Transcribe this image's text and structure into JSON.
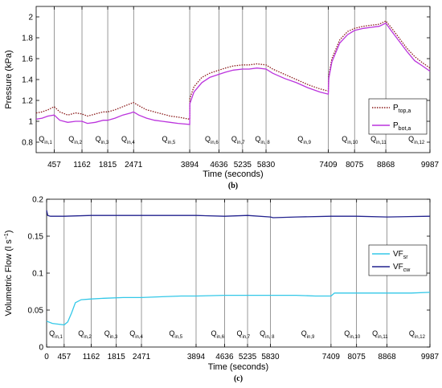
{
  "chart_data": [
    {
      "type": "line",
      "panel_label": "(b)",
      "xlabel": "Time (seconds)",
      "ylabel": "Pressure (kPa)",
      "ylim": [
        0.7,
        2.1
      ],
      "xlim": [
        0,
        9987
      ],
      "yticks": [
        0.8,
        1,
        1.2,
        1.4,
        1.6,
        1.8,
        2
      ],
      "ytick_labels": [
        "0.8",
        "1",
        "1.2",
        "1.4",
        "1.6",
        "1.8",
        "2"
      ],
      "xticks": [
        457,
        1162,
        1815,
        2471,
        3894,
        4636,
        5235,
        5830,
        7409,
        8075,
        8868,
        9987
      ],
      "xtick_labels": [
        "457",
        "1162",
        "1815",
        "2471",
        "3894",
        "4636",
        "5235",
        "5830",
        "7409",
        "8075",
        "8868",
        "9987"
      ],
      "vlines": [
        457,
        1162,
        1815,
        2471,
        3894,
        4636,
        5235,
        5830,
        7409,
        8075,
        8868
      ],
      "grid": false,
      "legend_position": "right",
      "regions": [
        {
          "x": 45,
          "base": "Q",
          "sub": "in,1"
        },
        {
          "x": 800,
          "base": "Q",
          "sub": "in,2"
        },
        {
          "x": 1480,
          "base": "Q",
          "sub": "in,3"
        },
        {
          "x": 2140,
          "base": "Q",
          "sub": "in,4"
        },
        {
          "x": 3170,
          "base": "Q",
          "sub": "in,5"
        },
        {
          "x": 4260,
          "base": "Q",
          "sub": "in,6"
        },
        {
          "x": 4930,
          "base": "Q",
          "sub": "in,7"
        },
        {
          "x": 5530,
          "base": "Q",
          "sub": "in, 8"
        },
        {
          "x": 6610,
          "base": "Q",
          "sub": "in,9"
        },
        {
          "x": 7730,
          "base": "Q",
          "sub": "in,10"
        },
        {
          "x": 8460,
          "base": "Q",
          "sub": "in,11"
        },
        {
          "x": 9420,
          "base": "Q",
          "sub": "in,12"
        }
      ],
      "series": [
        {
          "name_base": "P",
          "name_sub": "top,a",
          "color": "#8b1a1a",
          "style": "dotted",
          "x": [
            0,
            150,
            300,
            457,
            600,
            800,
            1000,
            1162,
            1300,
            1500,
            1700,
            1815,
            2000,
            2200,
            2400,
            2471,
            2600,
            2800,
            3000,
            3200,
            3400,
            3600,
            3894,
            3900,
            4000,
            4200,
            4400,
            4636,
            4800,
            5000,
            5235,
            5400,
            5600,
            5830,
            6000,
            6300,
            6600,
            6900,
            7200,
            7409,
            7420,
            7500,
            7700,
            7900,
            8075,
            8300,
            8500,
            8700,
            8868,
            9000,
            9200,
            9400,
            9600,
            9800,
            9987
          ],
          "y": [
            1.08,
            1.09,
            1.11,
            1.14,
            1.09,
            1.06,
            1.08,
            1.07,
            1.05,
            1.07,
            1.09,
            1.09,
            1.11,
            1.14,
            1.17,
            1.18,
            1.15,
            1.11,
            1.09,
            1.07,
            1.05,
            1.04,
            1.02,
            1.22,
            1.33,
            1.42,
            1.46,
            1.49,
            1.51,
            1.53,
            1.54,
            1.54,
            1.55,
            1.54,
            1.5,
            1.45,
            1.4,
            1.35,
            1.31,
            1.29,
            1.44,
            1.6,
            1.78,
            1.86,
            1.89,
            1.91,
            1.92,
            1.93,
            1.96,
            1.9,
            1.8,
            1.7,
            1.62,
            1.56,
            1.51
          ]
        },
        {
          "name_base": "P",
          "name_sub": "bot,a",
          "color": "#bb33dd",
          "style": "solid",
          "x": [
            0,
            150,
            300,
            457,
            600,
            800,
            1000,
            1162,
            1300,
            1500,
            1700,
            1815,
            2000,
            2200,
            2400,
            2471,
            2600,
            2800,
            3000,
            3200,
            3400,
            3600,
            3894,
            3900,
            4000,
            4200,
            4400,
            4636,
            4800,
            5000,
            5235,
            5400,
            5600,
            5830,
            6000,
            6300,
            6600,
            6900,
            7200,
            7409,
            7420,
            7500,
            7700,
            7900,
            8075,
            8300,
            8500,
            8700,
            8868,
            9000,
            9200,
            9400,
            9600,
            9800,
            9987
          ],
          "y": [
            1.02,
            1.03,
            1.05,
            1.06,
            1.01,
            0.99,
            1.0,
            1.0,
            0.98,
            0.99,
            1.01,
            1.01,
            1.03,
            1.06,
            1.08,
            1.09,
            1.06,
            1.03,
            1.01,
            1.0,
            0.99,
            0.98,
            0.97,
            1.17,
            1.28,
            1.37,
            1.42,
            1.45,
            1.47,
            1.49,
            1.5,
            1.5,
            1.51,
            1.5,
            1.46,
            1.41,
            1.37,
            1.32,
            1.28,
            1.26,
            1.41,
            1.57,
            1.75,
            1.83,
            1.87,
            1.89,
            1.9,
            1.91,
            1.94,
            1.87,
            1.77,
            1.67,
            1.58,
            1.53,
            1.48
          ]
        }
      ]
    },
    {
      "type": "line",
      "panel_label": "(c)",
      "xlabel": "Time (seconds)",
      "ylabel_base": "Volumetric Flow (l s",
      "ylabel_sup": "−1",
      "ylabel_end": ")",
      "ylim": [
        0,
        0.2
      ],
      "xlim": [
        0,
        9987
      ],
      "yticks": [
        0,
        0.05,
        0.1,
        0.15,
        0.2
      ],
      "ytick_labels": [
        "0",
        "0.05",
        "0.1",
        "0.15",
        "0.2"
      ],
      "xticks": [
        0,
        457,
        1162,
        1815,
        2471,
        3894,
        4636,
        5235,
        5830,
        7409,
        8075,
        8868,
        9987
      ],
      "xtick_labels": [
        "0",
        "457",
        "1162",
        "1815",
        "2471",
        "3894",
        "4636",
        "5235",
        "5830",
        "7409",
        "8075",
        "8868",
        "9987"
      ],
      "vlines": [
        457,
        1162,
        1815,
        2471,
        3894,
        4636,
        5235,
        5830,
        7409,
        8075,
        8868
      ],
      "grid": false,
      "legend_position": "right",
      "regions": [
        {
          "x": 45,
          "base": "Q",
          "sub": "in,1"
        },
        {
          "x": 800,
          "base": "Q",
          "sub": "in,2"
        },
        {
          "x": 1480,
          "base": "Q",
          "sub": "in,3"
        },
        {
          "x": 2140,
          "base": "Q",
          "sub": "in,4"
        },
        {
          "x": 3170,
          "base": "Q",
          "sub": "in,5"
        },
        {
          "x": 4260,
          "base": "Q",
          "sub": "in,6"
        },
        {
          "x": 4930,
          "base": "Q",
          "sub": "in,7"
        },
        {
          "x": 5530,
          "base": "Q",
          "sub": "in, 8"
        },
        {
          "x": 6610,
          "base": "Q",
          "sub": "in,9"
        },
        {
          "x": 7730,
          "base": "Q",
          "sub": "in,10"
        },
        {
          "x": 8460,
          "base": "Q",
          "sub": "in,11"
        },
        {
          "x": 9420,
          "base": "Q",
          "sub": "in,12"
        }
      ],
      "series": [
        {
          "name_base": "VF",
          "name_sub": "sr",
          "color": "#33c8e8",
          "style": "solid",
          "x": [
            0,
            150,
            300,
            457,
            550,
            650,
            750,
            900,
            1162,
            1500,
            2000,
            2471,
            3000,
            3500,
            3894,
            4636,
            5235,
            5830,
            6500,
            7000,
            7409,
            7500,
            8075,
            8868,
            9500,
            9987
          ],
          "y": [
            0.035,
            0.032,
            0.031,
            0.03,
            0.034,
            0.046,
            0.06,
            0.064,
            0.065,
            0.066,
            0.067,
            0.067,
            0.068,
            0.069,
            0.069,
            0.07,
            0.07,
            0.07,
            0.07,
            0.069,
            0.069,
            0.073,
            0.073,
            0.073,
            0.073,
            0.074
          ]
        },
        {
          "name_base": "VF",
          "name_sub": "cw",
          "color": "#22228e",
          "style": "solid",
          "x": [
            0,
            30,
            100,
            457,
            1162,
            1815,
            2471,
            3894,
            4636,
            5235,
            5830,
            5900,
            6500,
            7409,
            8075,
            8868,
            9987
          ],
          "y": [
            0.185,
            0.178,
            0.177,
            0.177,
            0.178,
            0.178,
            0.178,
            0.178,
            0.177,
            0.178,
            0.176,
            0.175,
            0.176,
            0.177,
            0.177,
            0.176,
            0.177
          ]
        }
      ]
    }
  ]
}
